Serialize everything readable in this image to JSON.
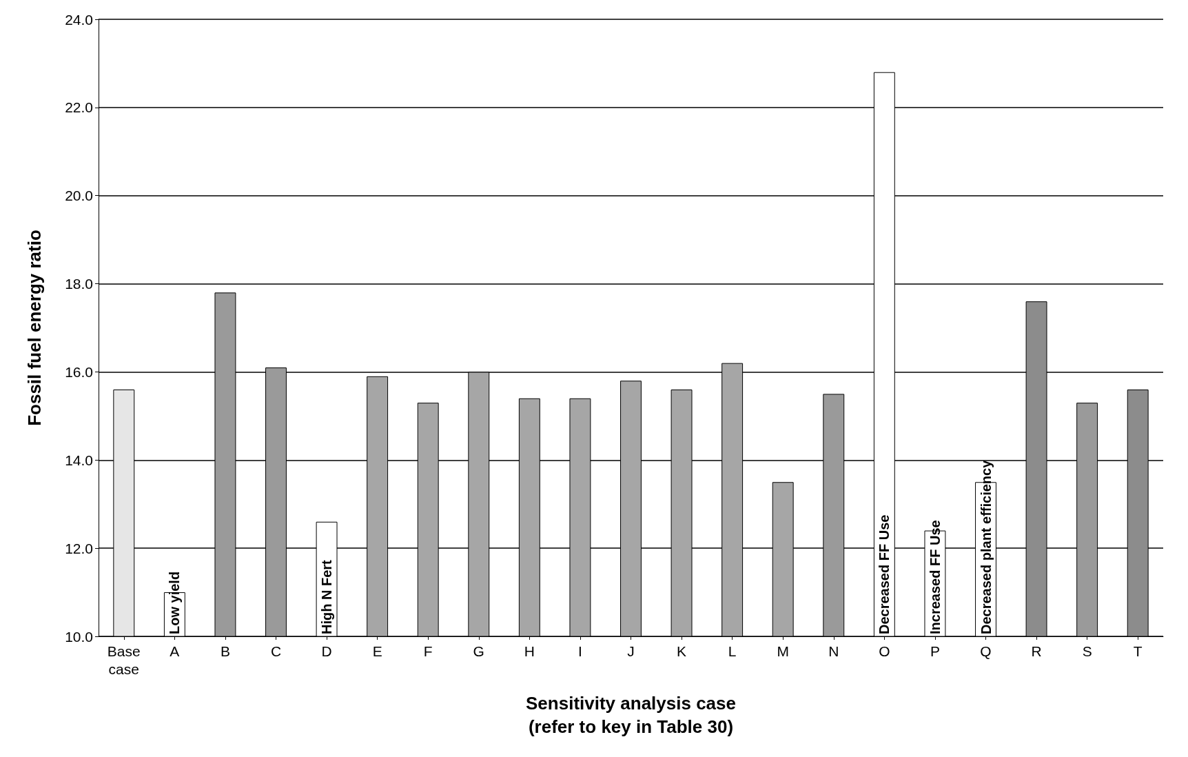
{
  "chart_data": {
    "type": "bar",
    "xlabel": "Sensitivity analysis case\n(refer to key in Table 30)",
    "ylabel": "Fossil fuel energy ratio",
    "categories": [
      "Base\ncase",
      "A",
      "B",
      "C",
      "D",
      "E",
      "F",
      "G",
      "H",
      "I",
      "J",
      "K",
      "L",
      "M",
      "N",
      "O",
      "P",
      "Q",
      "R",
      "S",
      "T"
    ],
    "values": [
      15.6,
      11.0,
      17.8,
      16.1,
      12.6,
      15.9,
      15.3,
      16.0,
      15.4,
      15.4,
      15.8,
      15.6,
      16.2,
      13.5,
      15.5,
      22.8,
      12.4,
      13.5,
      17.6,
      15.3,
      15.6
    ],
    "colors": [
      "#e6e6e6",
      "#ffffff",
      "#9a9a9a",
      "#9a9a9a",
      "#ffffff",
      "#a6a6a6",
      "#a6a6a6",
      "#a6a6a6",
      "#a6a6a6",
      "#a6a6a6",
      "#a6a6a6",
      "#a6a6a6",
      "#a6a6a6",
      "#a6a6a6",
      "#9a9a9a",
      "#ffffff",
      "#ffffff",
      "#ffffff",
      "#8c8c8c",
      "#9a9a9a",
      "#8c8c8c"
    ],
    "ylim": [
      10,
      24
    ],
    "yticks": [
      {
        "value": 10,
        "label": "10.0"
      },
      {
        "value": 12,
        "label": "12.0"
      },
      {
        "value": 14,
        "label": "14.0"
      },
      {
        "value": 16,
        "label": "16.0"
      },
      {
        "value": 18,
        "label": "18.0"
      },
      {
        "value": 20,
        "label": "20.0"
      },
      {
        "value": 22,
        "label": "22.0"
      },
      {
        "value": 24,
        "label": "24.0"
      }
    ],
    "grid": "y",
    "annotations": [
      {
        "text": "Low yield",
        "x": "A",
        "y": 10
      },
      {
        "text": "High N Fert",
        "x": "D",
        "y": 10
      },
      {
        "text": "Decreased FF Use",
        "x": "O",
        "y": 10
      },
      {
        "text": "Increased FF Use",
        "x": "P",
        "y": 10
      },
      {
        "text": "Decreased plant efficiency",
        "x": "Q",
        "y": 10
      }
    ]
  }
}
